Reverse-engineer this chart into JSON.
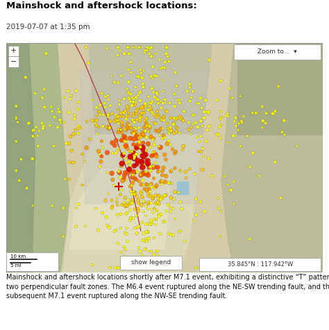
{
  "title": "Mainshock and aftershock locations:",
  "subtitle": "2019-07-07 at 1:35 pm",
  "caption_line1": "Mainshock and aftershock locations shortly after M7.1 event, exhibiting a distinctive “T” pattern created by",
  "caption_line2": "two perpendicular fault zones. The M6.4 event ruptured along the NE-SW trending fault, and the",
  "caption_line3": "subsequent M7.1 event ruptured along the NW-SE trending fault.",
  "title_fontsize": 9.5,
  "subtitle_fontsize": 7.5,
  "caption_fontsize": 7.0,
  "title_color": "#000000",
  "subtitle_color": "#333333",
  "caption_color": "#111111",
  "bg_color": "#ffffff",
  "map_border_color": "#999999",
  "zoom_button_text": "Zoom to...",
  "show_legend_text": "show legend",
  "coords_text": "35.845°N : 117.942°W",
  "scale_text1": "10 km",
  "scale_text2": "5 mi",
  "eq_colors": [
    "#ffff00",
    "#ffcc00",
    "#ff9900",
    "#ff5500",
    "#dd0000"
  ],
  "cross_color": "#cc0000",
  "road_color": "#bb3333",
  "seed": 42
}
